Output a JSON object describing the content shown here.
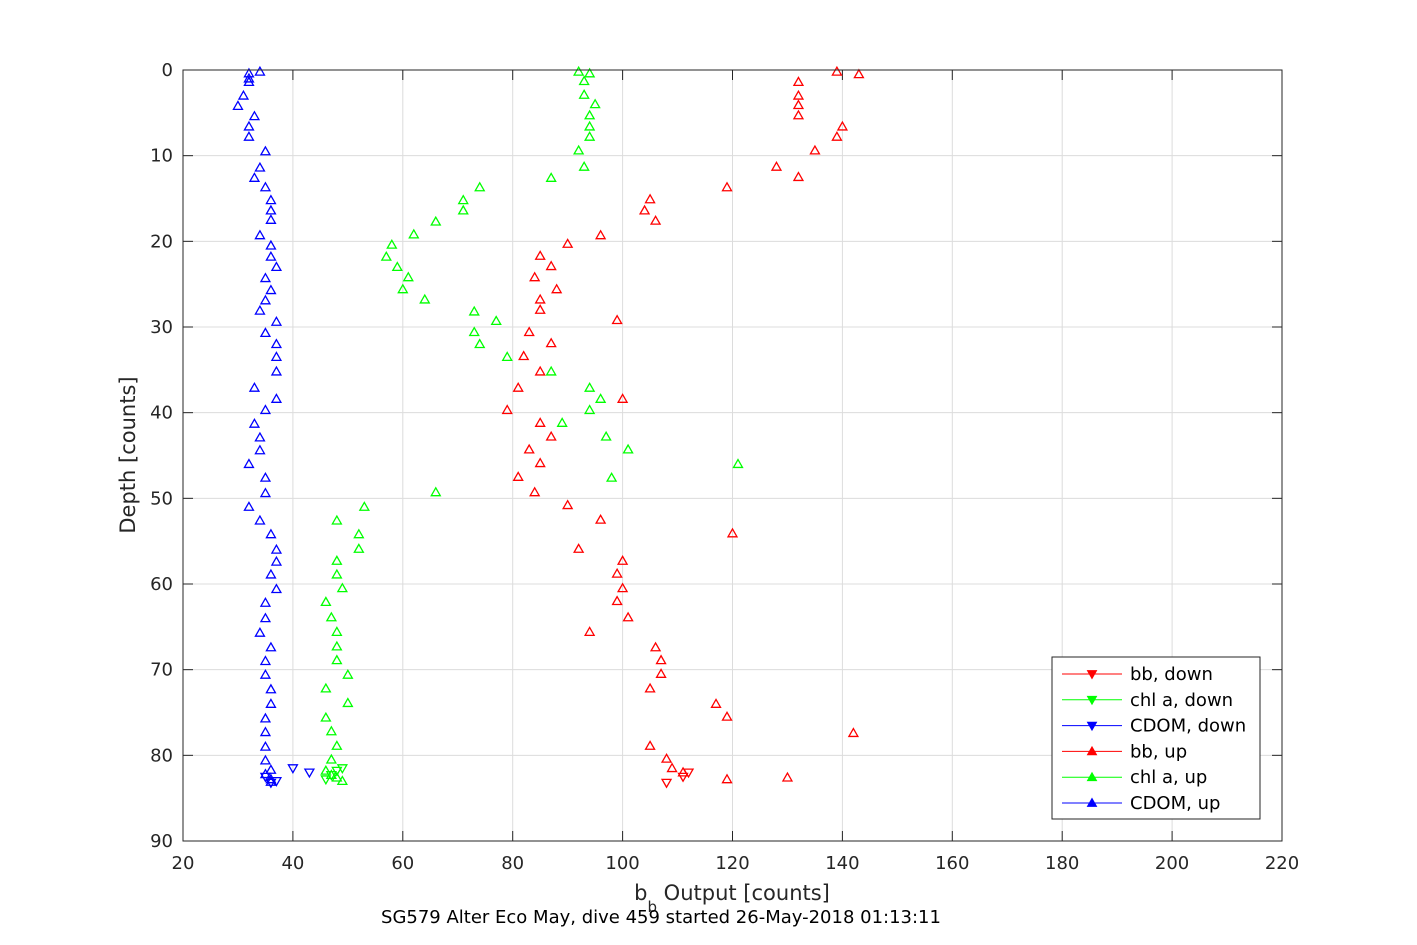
{
  "chart_data": {
    "type": "scatter",
    "title": "",
    "xlabel_main": "b",
    "xlabel_sub": "b",
    "xlabel_rest": " Output [counts]",
    "ylabel": "Depth [counts]",
    "caption": "SG579 Alter Eco May, dive 459 started 26-May-2018 01:13:11",
    "xlim": [
      20,
      220
    ],
    "ylim": [
      0,
      90
    ],
    "y_reversed": true,
    "grid": true,
    "legend_position": "bottom-right",
    "x_ticks": [
      20,
      40,
      60,
      80,
      100,
      120,
      140,
      160,
      180,
      200,
      220
    ],
    "y_ticks": [
      0,
      10,
      20,
      30,
      40,
      50,
      60,
      70,
      80,
      90
    ],
    "series": [
      {
        "name": "bb, down",
        "color": "#ff0000",
        "marker": "triangle-down",
        "points": [
          [
            108,
            83.2
          ],
          [
            111,
            82.5
          ],
          [
            112,
            82.0
          ]
        ]
      },
      {
        "name": "chl a, down",
        "color": "#00ff00",
        "marker": "triangle-down",
        "points": [
          [
            46,
            82.8
          ],
          [
            47,
            82.3
          ],
          [
            48,
            81.8
          ],
          [
            49,
            81.5
          ]
        ]
      },
      {
        "name": "CDOM, down",
        "color": "#0000ff",
        "marker": "triangle-down",
        "points": [
          [
            36,
            83.2
          ],
          [
            37,
            83.0
          ],
          [
            35,
            82.5
          ],
          [
            43,
            82.0
          ],
          [
            40,
            81.5
          ]
        ]
      },
      {
        "name": "bb, up",
        "color": "#ff0000",
        "marker": "triangle-up",
        "points": [
          [
            139,
            0.2
          ],
          [
            143,
            0.5
          ],
          [
            132,
            1.4
          ],
          [
            132,
            3.0
          ],
          [
            132,
            4.1
          ],
          [
            132,
            5.3
          ],
          [
            140,
            6.6
          ],
          [
            139,
            7.8
          ],
          [
            135,
            9.4
          ],
          [
            128,
            11.3
          ],
          [
            132,
            12.5
          ],
          [
            119,
            13.7
          ],
          [
            105,
            15.1
          ],
          [
            104,
            16.4
          ],
          [
            106,
            17.6
          ],
          [
            96,
            19.3
          ],
          [
            90,
            20.3
          ],
          [
            85,
            21.7
          ],
          [
            87,
            22.9
          ],
          [
            84,
            24.2
          ],
          [
            88,
            25.6
          ],
          [
            85,
            26.8
          ],
          [
            85,
            28.0
          ],
          [
            99,
            29.2
          ],
          [
            83,
            30.6
          ],
          [
            87,
            31.9
          ],
          [
            82,
            33.4
          ],
          [
            85,
            35.2
          ],
          [
            81,
            37.1
          ],
          [
            100,
            38.4
          ],
          [
            79,
            39.7
          ],
          [
            85,
            41.2
          ],
          [
            87,
            42.8
          ],
          [
            83,
            44.3
          ],
          [
            85,
            45.9
          ],
          [
            81,
            47.5
          ],
          [
            84,
            49.3
          ],
          [
            90,
            50.8
          ],
          [
            96,
            52.5
          ],
          [
            120,
            54.1
          ],
          [
            92,
            55.9
          ],
          [
            100,
            57.3
          ],
          [
            99,
            58.8
          ],
          [
            100,
            60.5
          ],
          [
            99,
            62.0
          ],
          [
            101,
            63.9
          ],
          [
            94,
            65.6
          ],
          [
            106,
            67.4
          ],
          [
            107,
            68.9
          ],
          [
            107,
            70.5
          ],
          [
            105,
            72.2
          ],
          [
            117,
            74.0
          ],
          [
            119,
            75.5
          ],
          [
            142,
            77.4
          ],
          [
            105,
            78.9
          ],
          [
            108,
            80.4
          ],
          [
            109,
            81.5
          ],
          [
            111,
            82.0
          ],
          [
            130,
            82.6
          ],
          [
            119,
            82.8
          ]
        ]
      },
      {
        "name": "chl a, up",
        "color": "#00ff00",
        "marker": "triangle-up",
        "points": [
          [
            92,
            0.2
          ],
          [
            94,
            0.4
          ],
          [
            93,
            1.3
          ],
          [
            93,
            2.9
          ],
          [
            95,
            4.0
          ],
          [
            94,
            5.3
          ],
          [
            94,
            6.6
          ],
          [
            94,
            7.8
          ],
          [
            92,
            9.4
          ],
          [
            93,
            11.3
          ],
          [
            87,
            12.6
          ],
          [
            74,
            13.7
          ],
          [
            71,
            15.2
          ],
          [
            71,
            16.4
          ],
          [
            66,
            17.7
          ],
          [
            62,
            19.2
          ],
          [
            58,
            20.4
          ],
          [
            57,
            21.8
          ],
          [
            59,
            23.0
          ],
          [
            61,
            24.2
          ],
          [
            60,
            25.6
          ],
          [
            64,
            26.8
          ],
          [
            73,
            28.2
          ],
          [
            77,
            29.3
          ],
          [
            73,
            30.6
          ],
          [
            74,
            32.0
          ],
          [
            79,
            33.5
          ],
          [
            87,
            35.2
          ],
          [
            94,
            37.1
          ],
          [
            96,
            38.4
          ],
          [
            94,
            39.7
          ],
          [
            89,
            41.2
          ],
          [
            97,
            42.8
          ],
          [
            101,
            44.3
          ],
          [
            121,
            46.0
          ],
          [
            98,
            47.6
          ],
          [
            66,
            49.3
          ],
          [
            53,
            51.0
          ],
          [
            48,
            52.6
          ],
          [
            52,
            54.2
          ],
          [
            52,
            55.9
          ],
          [
            48,
            57.3
          ],
          [
            48,
            58.9
          ],
          [
            49,
            60.5
          ],
          [
            46,
            62.1
          ],
          [
            47,
            63.9
          ],
          [
            48,
            65.6
          ],
          [
            48,
            67.3
          ],
          [
            48,
            68.9
          ],
          [
            50,
            70.6
          ],
          [
            46,
            72.2
          ],
          [
            50,
            73.9
          ],
          [
            46,
            75.6
          ],
          [
            47,
            77.2
          ],
          [
            48,
            78.9
          ],
          [
            47,
            80.5
          ],
          [
            46,
            81.8
          ],
          [
            47,
            82.3
          ],
          [
            49,
            83.0
          ],
          [
            48,
            82.6
          ]
        ]
      },
      {
        "name": "CDOM, up",
        "color": "#0000ff",
        "marker": "triangle-up",
        "points": [
          [
            34,
            0.2
          ],
          [
            32,
            0.4
          ],
          [
            32,
            1.0
          ],
          [
            32,
            1.4
          ],
          [
            31,
            3.0
          ],
          [
            30,
            4.2
          ],
          [
            33,
            5.4
          ],
          [
            32,
            6.6
          ],
          [
            32,
            7.8
          ],
          [
            35,
            9.5
          ],
          [
            34,
            11.4
          ],
          [
            33,
            12.6
          ],
          [
            35,
            13.7
          ],
          [
            36,
            15.2
          ],
          [
            36,
            16.4
          ],
          [
            36,
            17.5
          ],
          [
            34,
            19.3
          ],
          [
            36,
            20.5
          ],
          [
            36,
            21.8
          ],
          [
            37,
            23.0
          ],
          [
            35,
            24.3
          ],
          [
            36,
            25.7
          ],
          [
            35,
            26.9
          ],
          [
            34,
            28.1
          ],
          [
            37,
            29.4
          ],
          [
            35,
            30.7
          ],
          [
            37,
            32.0
          ],
          [
            37,
            33.5
          ],
          [
            37,
            35.2
          ],
          [
            33,
            37.1
          ],
          [
            37,
            38.4
          ],
          [
            35,
            39.7
          ],
          [
            33,
            41.3
          ],
          [
            34,
            42.9
          ],
          [
            34,
            44.4
          ],
          [
            32,
            46.0
          ],
          [
            35,
            47.6
          ],
          [
            35,
            49.4
          ],
          [
            32,
            51.0
          ],
          [
            34,
            52.6
          ],
          [
            36,
            54.2
          ],
          [
            37,
            56.0
          ],
          [
            37,
            57.4
          ],
          [
            36,
            58.9
          ],
          [
            37,
            60.6
          ],
          [
            35,
            62.2
          ],
          [
            35,
            64.0
          ],
          [
            34,
            65.7
          ],
          [
            36,
            67.4
          ],
          [
            35,
            69.0
          ],
          [
            35,
            70.6
          ],
          [
            36,
            72.3
          ],
          [
            36,
            74.0
          ],
          [
            35,
            75.7
          ],
          [
            35,
            77.3
          ],
          [
            35,
            79.0
          ],
          [
            35,
            80.6
          ],
          [
            36,
            81.7
          ],
          [
            35,
            82.2
          ],
          [
            36,
            82.8
          ],
          [
            36,
            83.1
          ]
        ]
      }
    ]
  }
}
